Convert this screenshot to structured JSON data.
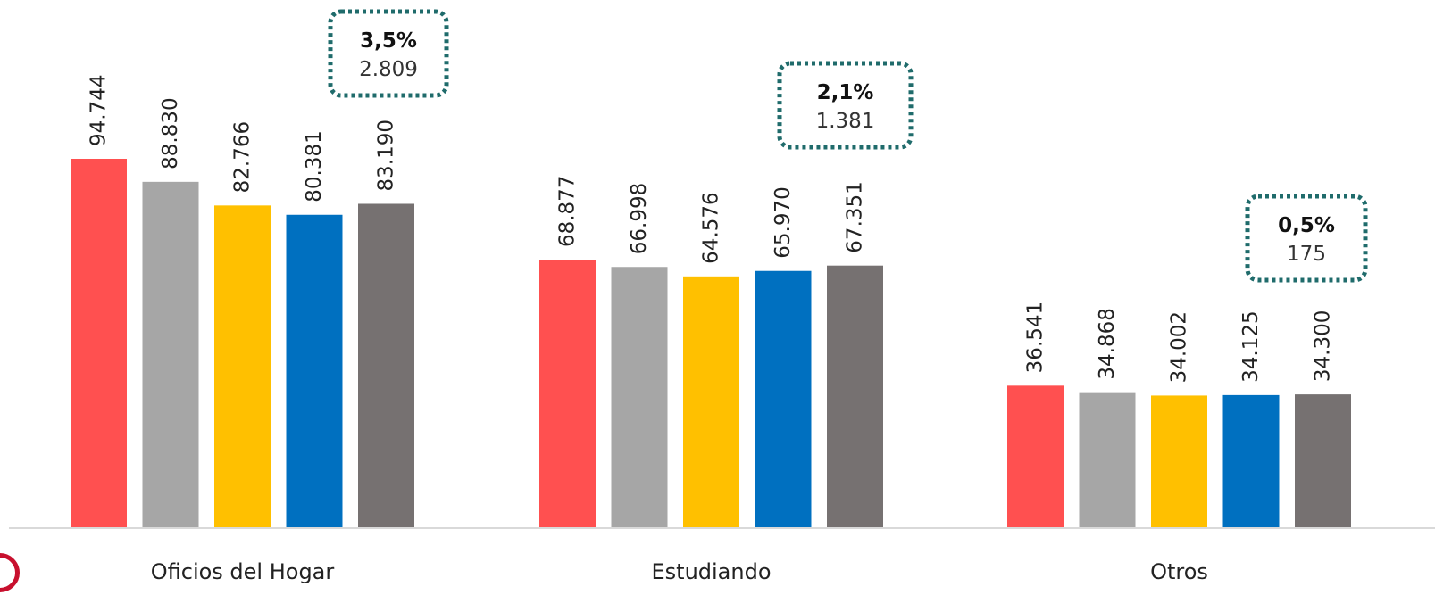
{
  "chart_data": {
    "type": "bar",
    "categories": [
      "Oficios del Hogar",
      "Estudiando",
      "Otros"
    ],
    "series": [
      {
        "color": "#FF5050",
        "values": [
          94744,
          68877,
          36541
        ]
      },
      {
        "color": "#A6A6A6",
        "values": [
          88830,
          66998,
          34868
        ]
      },
      {
        "color": "#FFC000",
        "values": [
          82766,
          64576,
          34002
        ]
      },
      {
        "color": "#0070C0",
        "values": [
          80381,
          65970,
          34125
        ]
      },
      {
        "color": "#767171",
        "values": [
          83190,
          67351,
          34300
        ]
      }
    ],
    "value_labels": [
      [
        "94.744",
        "88.830",
        "82.766",
        "80.381",
        "83.190"
      ],
      [
        "68.877",
        "66.998",
        "64.576",
        "65.970",
        "67.351"
      ],
      [
        "36.541",
        "34.868",
        "34.002",
        "34.125",
        "34.300"
      ]
    ],
    "annotations": [
      {
        "category": "Oficios del Hogar",
        "percent": "3,5%",
        "value": "2.809"
      },
      {
        "category": "Estudiando",
        "percent": "2,1%",
        "value": "1.381"
      },
      {
        "category": "Otros",
        "percent": "0,5%",
        "value": "175"
      }
    ],
    "annotation_border_color": "#1F6B6B",
    "ylim": [
      0,
      100000
    ],
    "grid": false,
    "legend": "none",
    "title": "",
    "xlabel": "",
    "ylabel": ""
  },
  "decoration": {
    "corner_mark_color": "#C8102E"
  }
}
